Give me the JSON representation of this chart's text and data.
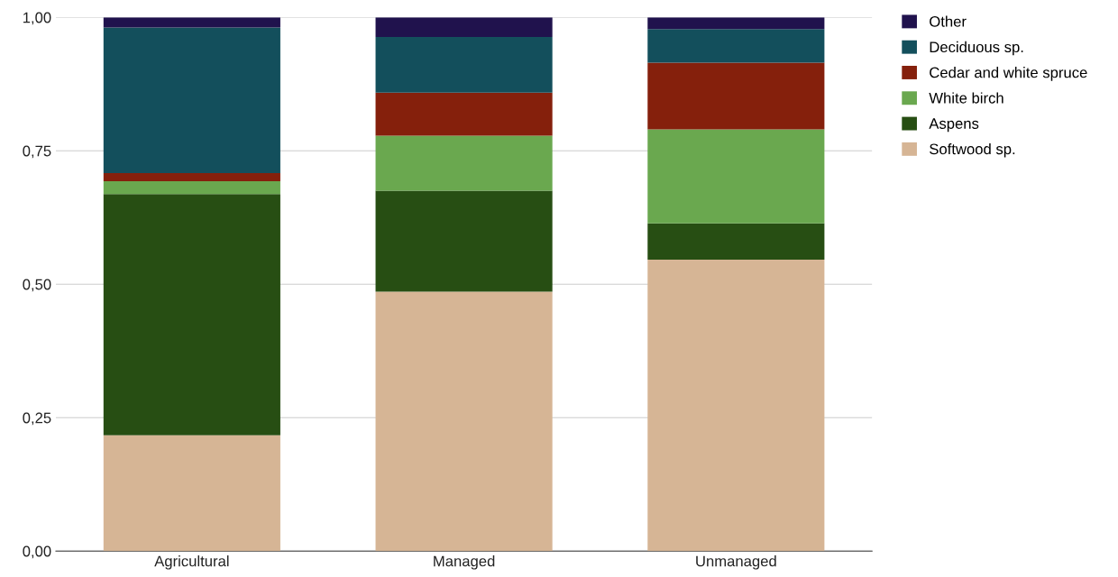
{
  "chart_data": {
    "type": "bar",
    "stacked": true,
    "categories": [
      "Agricultural",
      "Managed",
      "Unmanaged"
    ],
    "series": [
      {
        "name": "Softwood sp.",
        "color": "#d6b595",
        "values": [
          0.217,
          0.486,
          0.546
        ]
      },
      {
        "name": "Aspens",
        "color": "#274e13",
        "values": [
          0.452,
          0.189,
          0.068
        ]
      },
      {
        "name": "White birch",
        "color": "#6aa84f",
        "values": [
          0.024,
          0.103,
          0.176
        ]
      },
      {
        "name": "Cedar and white spruce",
        "color": "#85200c",
        "values": [
          0.015,
          0.081,
          0.125
        ]
      },
      {
        "name": "Deciduous sp.",
        "color": "#134f5c",
        "values": [
          0.273,
          0.104,
          0.063
        ]
      },
      {
        "name": "Other",
        "color": "#20124d",
        "values": [
          0.019,
          0.037,
          0.022
        ]
      }
    ],
    "ylim": [
      0,
      1
    ],
    "yticks": [
      {
        "value": 0,
        "label": "0,00"
      },
      {
        "value": 0.25,
        "label": "0,25"
      },
      {
        "value": 0.5,
        "label": "0,50"
      },
      {
        "value": 0.75,
        "label": "0,75"
      },
      {
        "value": 1,
        "label": "1,00"
      }
    ],
    "grid": "y",
    "legend": "right"
  }
}
